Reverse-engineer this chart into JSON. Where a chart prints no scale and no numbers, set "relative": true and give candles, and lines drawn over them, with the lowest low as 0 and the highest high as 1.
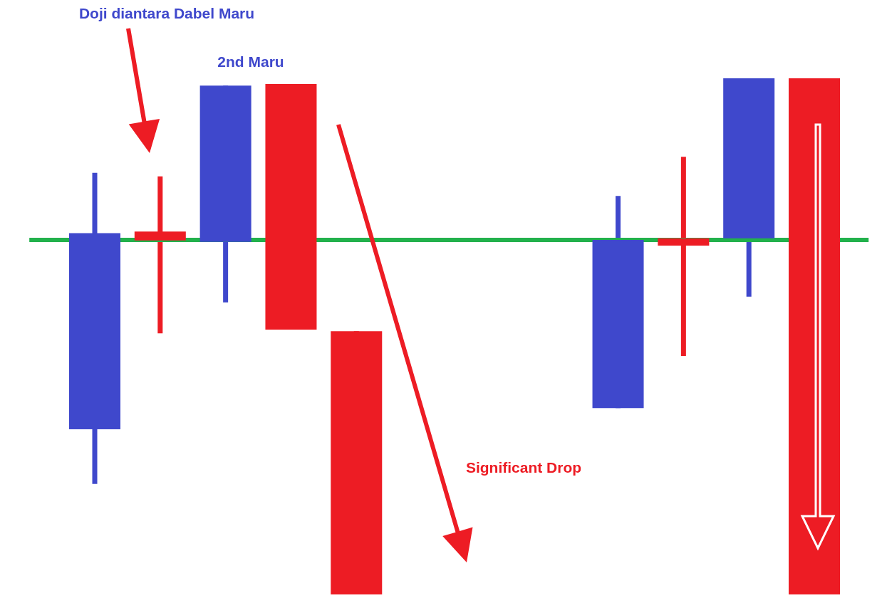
{
  "chart_data": {
    "type": "candlestick",
    "relative": true,
    "categories": [
      null,
      null,
      null,
      null,
      null,
      null,
      null,
      null,
      null,
      null,
      null,
      null
    ],
    "ohlc": [
      [
        0.32,
        0.817,
        0.214,
        0.7
      ],
      [
        0.703,
        0.81,
        0.506,
        0.686
      ],
      [
        0.683,
        0.986,
        0.566,
        0.986
      ],
      [
        0.989,
        0.989,
        0.513,
        0.513
      ],
      [
        0.51,
        0.51,
        0,
        0
      ],
      null,
      null,
      null,
      [
        0.361,
        0.772,
        0.361,
        0.687
      ],
      [
        0.69,
        0.848,
        0.462,
        0.676
      ],
      [
        0.69,
        1,
        0.577,
        1
      ],
      [
        1,
        1,
        0,
        0
      ]
    ],
    "colors": [
      "#3f48cc",
      "#ed1c24",
      "#3f48cc",
      "#ed1c24",
      "#ed1c24",
      null,
      null,
      null,
      "#3f48cc",
      "#ed1c24",
      "#3f48cc",
      "#ed1c24"
    ],
    "ref_lines": [
      {
        "axis": "y",
        "value": 0.687,
        "color": "#22b14c"
      }
    ],
    "annotations": [
      "Doji diantara Dabel Maru",
      "2nd Maru",
      "Significant Drop"
    ]
  }
}
